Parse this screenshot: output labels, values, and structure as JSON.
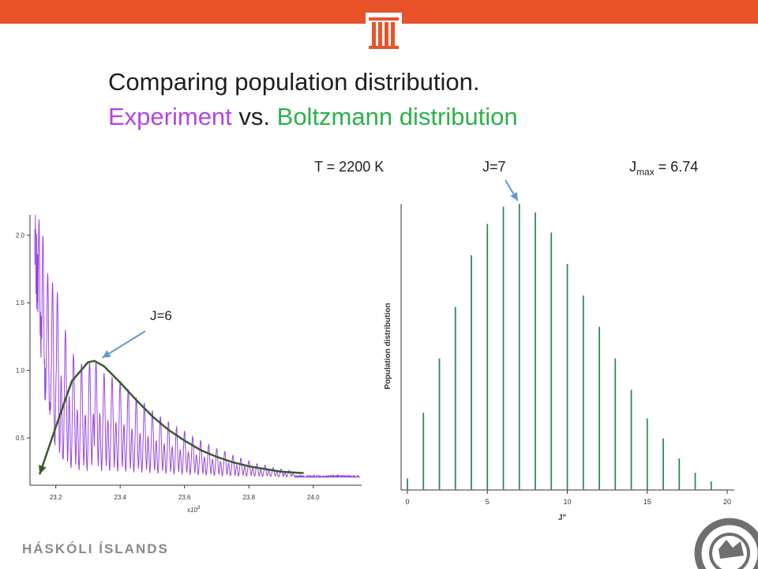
{
  "slide": {
    "title_line1": "Comparing population distribution.",
    "title_experiment": "Experiment",
    "title_vs": " vs. ",
    "title_boltzmann": "Boltzmann distribution",
    "temperature_label": "T = 2200 K",
    "jpeak_label": "J=7",
    "jmax_prefix": "J",
    "jmax_sub": "max",
    "jmax_suffix": " = 6.74",
    "footer_text": "HÁSKÓLI ÍSLANDS",
    "logo_icon": "university-building-icon",
    "seal_icon": "university-seal-icon"
  },
  "colors": {
    "topbar": "#e8532a",
    "title_text": "#1f1f1f",
    "experiment": "#b146e6",
    "boltzmann": "#2bb24c",
    "spectrum": "#9a44e0",
    "fit_curve": "#3b5a2d",
    "bars": "#2e8b57",
    "arrow": "#5b9bd5",
    "footer": "#8a8a8a"
  },
  "chart_data": [
    {
      "type": "line",
      "xlabel": "x10",
      "xlabel_exp": "3",
      "ylabel": "",
      "xlim": [
        23.12,
        24.15
      ],
      "ylim": [
        0.15,
        2.15
      ],
      "x_ticks": [
        23.2,
        23.4,
        23.6,
        23.8,
        24.0
      ],
      "x_tick_labels": [
        "23.2",
        "23.4",
        "23.6",
        "23.8",
        "24.0"
      ],
      "y_ticks": [
        0.5,
        1.0,
        1.5,
        2.0
      ],
      "y_tick_labels": [
        "0.5",
        "1.0",
        "1.5",
        "2.0"
      ],
      "spectrum": {
        "baseline": 0.21,
        "decay_start": 2.0,
        "decay_rate": 3.6,
        "line_spacing": 0.0235,
        "line_width": 0.0045,
        "peaks": [
          {
            "x": 23.148,
            "y": 2.12
          },
          {
            "x": 23.16,
            "y": 2.0
          },
          {
            "x": 23.175,
            "y": 1.72
          },
          {
            "x": 23.19,
            "y": 1.65
          },
          {
            "x": 23.205,
            "y": 1.58
          },
          {
            "x": 23.23,
            "y": 1.3
          },
          {
            "x": 23.255,
            "y": 1.12
          },
          {
            "x": 23.28,
            "y": 1.05
          },
          {
            "x": 23.305,
            "y": 1.06
          },
          {
            "x": 23.325,
            "y": 1.07
          },
          {
            "x": 23.35,
            "y": 0.98
          },
          {
            "x": 23.375,
            "y": 0.95
          },
          {
            "x": 23.4,
            "y": 0.92
          },
          {
            "x": 23.425,
            "y": 0.86
          },
          {
            "x": 23.45,
            "y": 0.8
          },
          {
            "x": 23.475,
            "y": 0.76
          },
          {
            "x": 23.5,
            "y": 0.7
          },
          {
            "x": 23.525,
            "y": 0.66
          },
          {
            "x": 23.55,
            "y": 0.62
          },
          {
            "x": 23.575,
            "y": 0.58
          },
          {
            "x": 23.6,
            "y": 0.55
          },
          {
            "x": 23.625,
            "y": 0.51
          },
          {
            "x": 23.65,
            "y": 0.48
          },
          {
            "x": 23.675,
            "y": 0.45
          },
          {
            "x": 23.7,
            "y": 0.42
          },
          {
            "x": 23.725,
            "y": 0.4
          },
          {
            "x": 23.75,
            "y": 0.37
          },
          {
            "x": 23.775,
            "y": 0.35
          },
          {
            "x": 23.8,
            "y": 0.33
          },
          {
            "x": 23.825,
            "y": 0.31
          },
          {
            "x": 23.85,
            "y": 0.3
          },
          {
            "x": 23.875,
            "y": 0.28
          },
          {
            "x": 23.9,
            "y": 0.27
          },
          {
            "x": 23.925,
            "y": 0.26
          }
        ]
      },
      "fit_curve": {
        "x": [
          23.15,
          23.2,
          23.25,
          23.3,
          23.32,
          23.35,
          23.4,
          23.45,
          23.5,
          23.55,
          23.6,
          23.65,
          23.7,
          23.75,
          23.8,
          23.85,
          23.9,
          23.97
        ],
        "y": [
          0.23,
          0.58,
          0.92,
          1.06,
          1.07,
          1.03,
          0.91,
          0.78,
          0.66,
          0.56,
          0.48,
          0.41,
          0.36,
          0.32,
          0.29,
          0.27,
          0.25,
          0.24
        ]
      },
      "annotation": {
        "text": "J=6",
        "x": 23.32,
        "y": 1.07
      }
    },
    {
      "type": "bar",
      "xlabel": "J\"",
      "ylabel": "Population distribution",
      "xlim": [
        0,
        20
      ],
      "ylim": [
        0,
        1.0
      ],
      "x_ticks": [
        0,
        5,
        10,
        15,
        20
      ],
      "x_tick_labels": [
        "0",
        "5",
        "10",
        "15",
        "20"
      ],
      "x": [
        0,
        1,
        2,
        3,
        4,
        5,
        6,
        7,
        8,
        9,
        10,
        11,
        12,
        13,
        14,
        15,
        16,
        17,
        18,
        19
      ],
      "values": [
        0.04,
        0.27,
        0.46,
        0.64,
        0.82,
        0.93,
        0.99,
        1.0,
        0.97,
        0.9,
        0.79,
        0.68,
        0.57,
        0.46,
        0.35,
        0.25,
        0.18,
        0.11,
        0.06,
        0.03
      ],
      "annotation": {
        "text": "J=7",
        "x": 7,
        "y": 1.0
      }
    }
  ]
}
